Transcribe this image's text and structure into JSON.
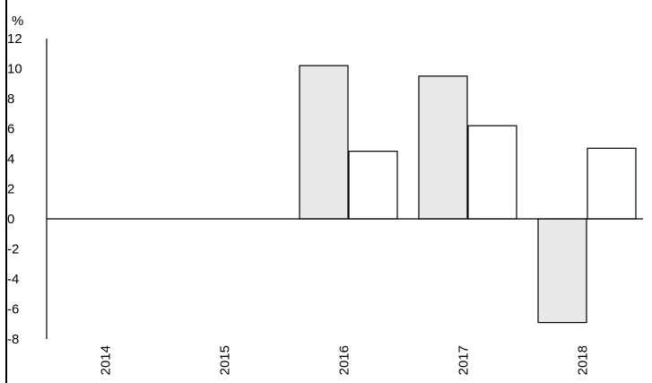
{
  "chart_data": {
    "type": "bar",
    "title": "",
    "xlabel": "",
    "ylabel": "%",
    "categories": [
      "2014",
      "2015",
      "2016",
      "2017",
      "2018"
    ],
    "series": [
      {
        "values": [
          null,
          null,
          10.2,
          9.5,
          -6.9
        ],
        "color": "#e8e8e8"
      },
      {
        "values": [
          null,
          null,
          4.5,
          6.2,
          4.7
        ],
        "color": "#ffffff"
      }
    ],
    "ylim": [
      -8,
      12
    ],
    "yticks": [
      "12",
      "10",
      "8",
      "6",
      "4",
      "2",
      "0",
      "-2",
      "-4",
      "-6",
      "-8"
    ],
    "grid": false,
    "legend": "none"
  }
}
